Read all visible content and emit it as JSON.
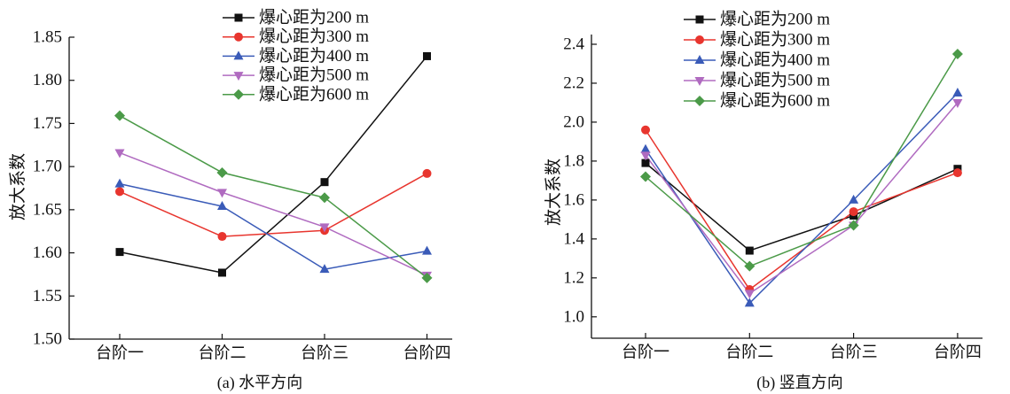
{
  "chart_data": [
    {
      "type": "line",
      "caption": "(a) 水平方向",
      "ylabel": "放大系数",
      "categories": [
        "台阶一",
        "台阶二",
        "台阶三",
        "台阶四"
      ],
      "yticks": [
        "1.50",
        "1.55",
        "1.60",
        "1.65",
        "1.70",
        "1.75",
        "1.80",
        "1.85"
      ],
      "ylim": [
        1.5,
        1.85
      ],
      "grid": false,
      "legend_position": "top-center",
      "series": [
        {
          "name": "爆心距为200 m",
          "color": "#111111",
          "marker": "square",
          "values": [
            1.601,
            1.577,
            1.682,
            1.828
          ]
        },
        {
          "name": "爆心距为300 m",
          "color": "#e8352e",
          "marker": "circle",
          "values": [
            1.671,
            1.619,
            1.626,
            1.692
          ]
        },
        {
          "name": "爆心距为400 m",
          "color": "#3a5bb8",
          "marker": "triangle-up",
          "values": [
            1.68,
            1.654,
            1.581,
            1.602
          ]
        },
        {
          "name": "爆心距为500 m",
          "color": "#b06bc0",
          "marker": "triangle-down",
          "values": [
            1.716,
            1.67,
            1.63,
            1.574
          ]
        },
        {
          "name": "爆心距为600 m",
          "color": "#4b9a48",
          "marker": "diamond",
          "values": [
            1.759,
            1.693,
            1.664,
            1.571
          ]
        }
      ]
    },
    {
      "type": "line",
      "caption": "(b) 竖直方向",
      "ylabel": "放大系数",
      "categories": [
        "台阶一",
        "台阶二",
        "台阶三",
        "台阶四"
      ],
      "yticks": [
        "1.0",
        "1.2",
        "1.4",
        "1.6",
        "1.8",
        "2.0",
        "2.2",
        "2.4"
      ],
      "ylim": [
        0.89,
        2.45
      ],
      "grid": false,
      "legend_position": "top-left",
      "series": [
        {
          "name": "爆心距为200 m",
          "color": "#111111",
          "marker": "square",
          "values": [
            1.79,
            1.34,
            1.52,
            1.76
          ]
        },
        {
          "name": "爆心距为300 m",
          "color": "#e8352e",
          "marker": "circle",
          "values": [
            1.96,
            1.14,
            1.54,
            1.74
          ]
        },
        {
          "name": "爆心距为400 m",
          "color": "#3a5bb8",
          "marker": "triangle-up",
          "values": [
            1.86,
            1.07,
            1.6,
            2.15
          ]
        },
        {
          "name": "爆心距为500 m",
          "color": "#b06bc0",
          "marker": "triangle-down",
          "values": [
            1.83,
            1.12,
            1.47,
            2.1
          ]
        },
        {
          "name": "爆心距为600 m",
          "color": "#4b9a48",
          "marker": "diamond",
          "values": [
            1.72,
            1.26,
            1.47,
            2.35
          ]
        }
      ]
    }
  ]
}
